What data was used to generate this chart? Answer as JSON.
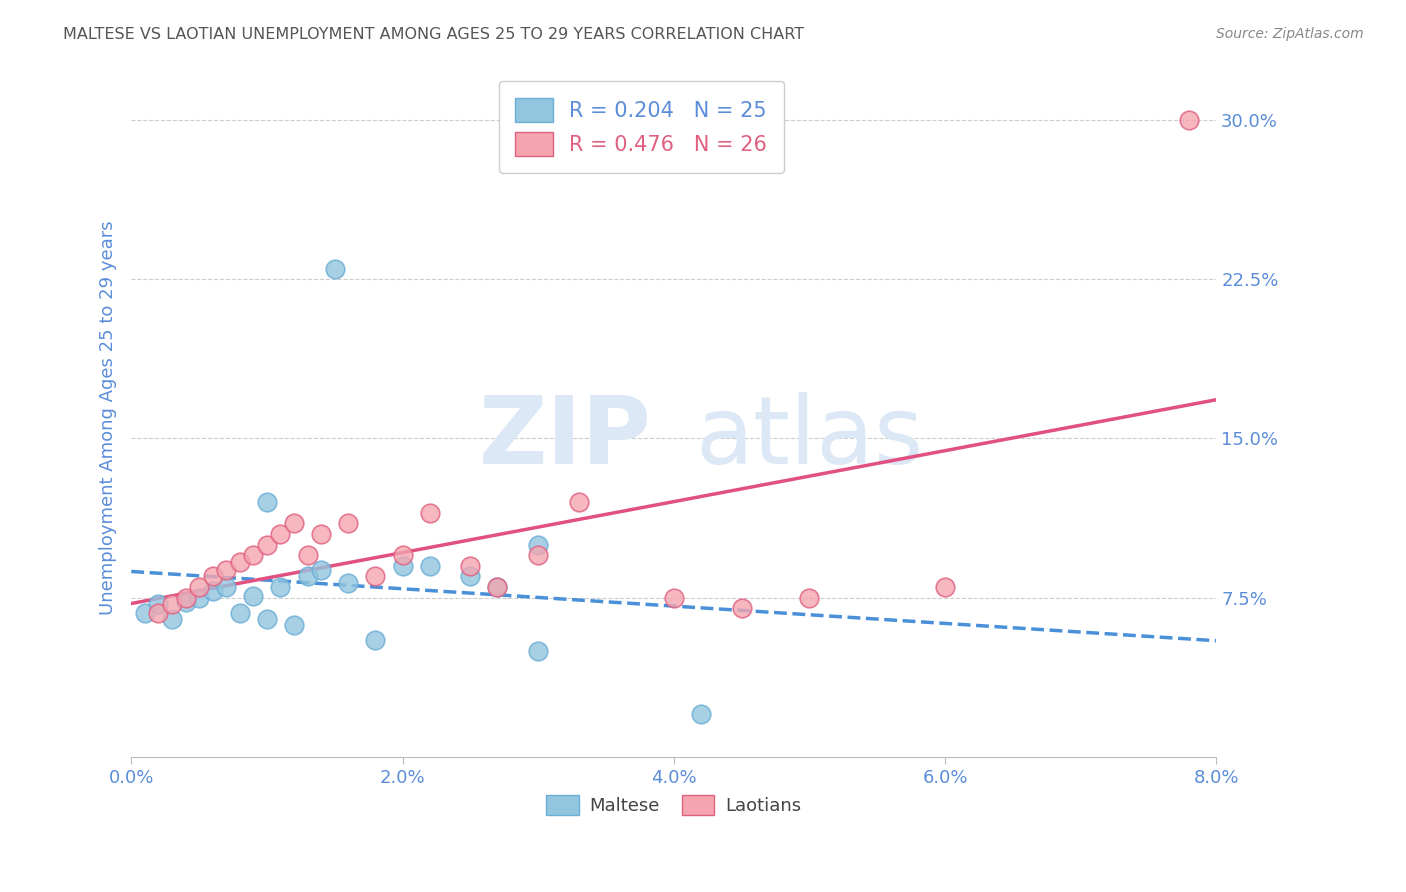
{
  "title": "MALTESE VS LAOTIAN UNEMPLOYMENT AMONG AGES 25 TO 29 YEARS CORRELATION CHART",
  "source": "Source: ZipAtlas.com",
  "ylabel": "Unemployment Among Ages 25 to 29 years",
  "xlim": [
    0.0,
    0.08
  ],
  "ylim": [
    0.0,
    0.32
  ],
  "xticks": [
    0.0,
    0.02,
    0.04,
    0.06,
    0.08
  ],
  "xtick_labels": [
    "0.0%",
    "2.0%",
    "4.0%",
    "6.0%",
    "8.0%"
  ],
  "yticks": [
    0.075,
    0.15,
    0.225,
    0.3
  ],
  "ytick_labels": [
    "7.5%",
    "15.0%",
    "22.5%",
    "30.0%"
  ],
  "maltese_x": [
    0.001,
    0.002,
    0.003,
    0.004,
    0.005,
    0.006,
    0.007,
    0.008,
    0.009,
    0.01,
    0.011,
    0.012,
    0.013,
    0.014,
    0.016,
    0.018,
    0.02,
    0.022,
    0.025,
    0.027,
    0.03,
    0.01,
    0.015,
    0.03,
    0.042
  ],
  "maltese_y": [
    0.068,
    0.072,
    0.065,
    0.073,
    0.075,
    0.078,
    0.08,
    0.068,
    0.076,
    0.065,
    0.08,
    0.062,
    0.085,
    0.088,
    0.082,
    0.055,
    0.09,
    0.09,
    0.085,
    0.08,
    0.1,
    0.12,
    0.23,
    0.05,
    0.02
  ],
  "laotian_x": [
    0.002,
    0.003,
    0.004,
    0.005,
    0.006,
    0.007,
    0.008,
    0.009,
    0.01,
    0.011,
    0.012,
    0.013,
    0.014,
    0.016,
    0.018,
    0.02,
    0.022,
    0.025,
    0.027,
    0.03,
    0.033,
    0.04,
    0.045,
    0.05,
    0.06,
    0.078
  ],
  "laotian_y": [
    0.068,
    0.072,
    0.075,
    0.08,
    0.085,
    0.088,
    0.092,
    0.095,
    0.1,
    0.105,
    0.11,
    0.095,
    0.105,
    0.11,
    0.085,
    0.095,
    0.115,
    0.09,
    0.08,
    0.095,
    0.12,
    0.075,
    0.07,
    0.075,
    0.08,
    0.3
  ],
  "maltese_R": 0.204,
  "maltese_N": 25,
  "laotian_R": 0.476,
  "laotian_N": 26,
  "maltese_color": "#92c5de",
  "maltese_edge_color": "#6baed6",
  "laotian_color": "#f4a5b0",
  "laotian_edge_color": "#e06080",
  "maltese_line_color": "#4a90d9",
  "laotian_line_color": "#e05080",
  "background_color": "#ffffff",
  "grid_color": "#cccccc",
  "tick_color": "#5b8dd9",
  "title_color": "#555555",
  "source_color": "#888888",
  "watermark_zip": "ZIP",
  "watermark_atlas": "atlas",
  "watermark_color": "#dce8f5"
}
